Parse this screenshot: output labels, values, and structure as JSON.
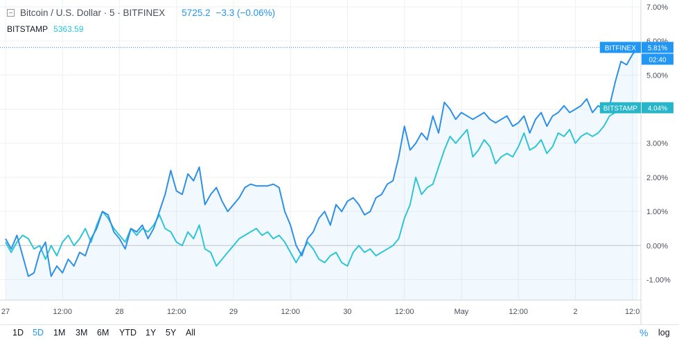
{
  "legend": {
    "title": "Bitcoin / U.S. Dollar · 5 · BITFINEX",
    "price": "5725.2",
    "change": "−3.3 (−0.06%)",
    "compare_name": "BITSTAMP",
    "compare_price": "5363.59"
  },
  "colors": {
    "main": "#2d8fe6",
    "compare": "#2ec4d6",
    "grid": "#eef0f3",
    "axis_text": "#4a4f5c"
  },
  "toolbar": {
    "ranges": [
      "1D",
      "5D",
      "1M",
      "3M",
      "6M",
      "YTD",
      "1Y",
      "5Y",
      "All"
    ],
    "active": "5D",
    "percent": "%",
    "log": "log"
  },
  "chart_data": {
    "type": "line",
    "percent_scale": true,
    "ylim": [
      -1.6,
      7.2
    ],
    "xlim": [
      0,
      111.5
    ],
    "y_ticks": [
      "7.00%",
      "6.00%",
      "5.00%",
      "4.00%",
      "3.00%",
      "2.00%",
      "1.00%",
      "0.00%",
      "-1.00%"
    ],
    "y_tick_values": [
      7,
      6,
      5,
      4,
      3,
      2,
      1,
      0,
      -1
    ],
    "x_ticks": [
      {
        "label": "27",
        "hour": 0
      },
      {
        "label": "12:00",
        "hour": 10
      },
      {
        "label": "28",
        "hour": 20
      },
      {
        "label": "12:00",
        "hour": 30
      },
      {
        "label": "29",
        "hour": 40
      },
      {
        "label": "12:00",
        "hour": 50
      },
      {
        "label": "30",
        "hour": 60
      },
      {
        "label": "12:00",
        "hour": 70
      },
      {
        "label": "May",
        "hour": 80
      },
      {
        "label": "12:00",
        "hour": 90
      },
      {
        "label": "2",
        "hour": 100
      },
      {
        "label": "12:0",
        "hour": 110
      }
    ],
    "x_unit": "hours since first tick",
    "grid": true,
    "series": [
      {
        "name": "BITFINEX",
        "last_label": "5.81%",
        "countdown": "02:40",
        "points": [
          [
            0,
            0.2
          ],
          [
            1,
            -0.1
          ],
          [
            2,
            0.3
          ],
          [
            3,
            -0.3
          ],
          [
            4,
            -0.9
          ],
          [
            5,
            -0.8
          ],
          [
            6,
            -0.2
          ],
          [
            7,
            0.1
          ],
          [
            8,
            -0.9
          ],
          [
            9,
            -0.6
          ],
          [
            10,
            -0.8
          ],
          [
            11,
            -0.4
          ],
          [
            12,
            -0.6
          ],
          [
            13,
            -0.2
          ],
          [
            14,
            -0.3
          ],
          [
            15,
            0.2
          ],
          [
            16,
            0.5
          ],
          [
            17,
            1.0
          ],
          [
            18,
            0.9
          ],
          [
            19,
            0.4
          ],
          [
            20,
            0.2
          ],
          [
            21,
            -0.1
          ],
          [
            22,
            0.5
          ],
          [
            23,
            0.4
          ],
          [
            24,
            0.6
          ],
          [
            25,
            0.2
          ],
          [
            26,
            0.5
          ],
          [
            27,
            1.0
          ],
          [
            28,
            1.5
          ],
          [
            29,
            2.2
          ],
          [
            30,
            1.6
          ],
          [
            31,
            1.5
          ],
          [
            32,
            2.1
          ],
          [
            33,
            1.9
          ],
          [
            34,
            2.3
          ],
          [
            35,
            1.2
          ],
          [
            36,
            1.5
          ],
          [
            37,
            1.7
          ],
          [
            38,
            1.3
          ],
          [
            39,
            1.0
          ],
          [
            40,
            1.2
          ],
          [
            41,
            1.4
          ],
          [
            42,
            1.7
          ],
          [
            43,
            1.8
          ],
          [
            44,
            1.75
          ],
          [
            45,
            1.75
          ],
          [
            46,
            1.75
          ],
          [
            47,
            1.8
          ],
          [
            48,
            1.7
          ],
          [
            49,
            1.0
          ],
          [
            50,
            0.6
          ],
          [
            51,
            0.0
          ],
          [
            52,
            -0.3
          ],
          [
            53,
            0.2
          ],
          [
            54,
            0.4
          ],
          [
            55,
            0.8
          ],
          [
            56,
            1.0
          ],
          [
            57,
            0.6
          ],
          [
            58,
            1.2
          ],
          [
            59,
            1.0
          ],
          [
            60,
            1.3
          ],
          [
            61,
            1.4
          ],
          [
            62,
            1.2
          ],
          [
            63,
            0.9
          ],
          [
            64,
            1.0
          ],
          [
            65,
            1.4
          ],
          [
            66,
            1.5
          ],
          [
            67,
            1.8
          ],
          [
            68,
            1.9
          ],
          [
            69,
            2.6
          ],
          [
            70,
            3.5
          ],
          [
            71,
            2.8
          ],
          [
            72,
            3.0
          ],
          [
            73,
            3.3
          ],
          [
            74,
            3.1
          ],
          [
            75,
            3.8
          ],
          [
            76,
            3.3
          ],
          [
            77,
            4.2
          ],
          [
            78,
            4.0
          ],
          [
            79,
            3.7
          ],
          [
            80,
            3.9
          ],
          [
            81,
            3.8
          ],
          [
            82,
            3.7
          ],
          [
            83,
            3.8
          ],
          [
            84,
            3.9
          ],
          [
            85,
            3.7
          ],
          [
            86,
            3.6
          ],
          [
            87,
            3.7
          ],
          [
            88,
            3.8
          ],
          [
            89,
            3.5
          ],
          [
            90,
            3.6
          ],
          [
            91,
            3.8
          ],
          [
            92,
            3.3
          ],
          [
            93,
            3.7
          ],
          [
            94,
            3.9
          ],
          [
            95,
            3.5
          ],
          [
            96,
            3.8
          ],
          [
            97,
            3.9
          ],
          [
            98,
            4.1
          ],
          [
            99,
            3.9
          ],
          [
            100,
            4.0
          ],
          [
            101,
            4.1
          ],
          [
            102,
            4.3
          ],
          [
            103,
            3.9
          ],
          [
            104,
            4.1
          ],
          [
            105,
            4.0
          ],
          [
            106,
            4.1
          ],
          [
            107,
            4.8
          ],
          [
            108,
            5.4
          ],
          [
            109,
            5.3
          ],
          [
            110,
            5.6
          ],
          [
            111,
            5.81
          ]
        ]
      },
      {
        "name": "BITSTAMP",
        "last_label": "4.04%",
        "points": [
          [
            0,
            0.1
          ],
          [
            1,
            -0.2
          ],
          [
            2,
            0.1
          ],
          [
            3,
            0.3
          ],
          [
            4,
            0.2
          ],
          [
            5,
            -0.1
          ],
          [
            6,
            0.0
          ],
          [
            7,
            -0.4
          ],
          [
            8,
            0.0
          ],
          [
            9,
            -0.3
          ],
          [
            10,
            0.1
          ],
          [
            11,
            0.3
          ],
          [
            12,
            0.0
          ],
          [
            13,
            0.2
          ],
          [
            14,
            0.5
          ],
          [
            15,
            0.1
          ],
          [
            16,
            0.6
          ],
          [
            17,
            1.0
          ],
          [
            18,
            0.8
          ],
          [
            19,
            0.5
          ],
          [
            20,
            0.3
          ],
          [
            21,
            0.1
          ],
          [
            22,
            0.5
          ],
          [
            23,
            0.3
          ],
          [
            24,
            0.5
          ],
          [
            25,
            0.4
          ],
          [
            26,
            0.6
          ],
          [
            27,
            0.9
          ],
          [
            28,
            0.5
          ],
          [
            29,
            0.4
          ],
          [
            30,
            0.1
          ],
          [
            31,
            0.0
          ],
          [
            32,
            0.4
          ],
          [
            33,
            0.2
          ],
          [
            34,
            0.6
          ],
          [
            35,
            -0.1
          ],
          [
            36,
            -0.2
          ],
          [
            37,
            -0.6
          ],
          [
            38,
            -0.4
          ],
          [
            39,
            -0.2
          ],
          [
            40,
            0.0
          ],
          [
            41,
            0.2
          ],
          [
            42,
            0.3
          ],
          [
            43,
            0.4
          ],
          [
            44,
            0.5
          ],
          [
            45,
            0.3
          ],
          [
            46,
            0.4
          ],
          [
            47,
            0.2
          ],
          [
            48,
            0.3
          ],
          [
            49,
            0.1
          ],
          [
            50,
            -0.2
          ],
          [
            51,
            -0.5
          ],
          [
            52,
            -0.2
          ],
          [
            53,
            0.1
          ],
          [
            54,
            -0.1
          ],
          [
            55,
            -0.4
          ],
          [
            56,
            -0.5
          ],
          [
            57,
            -0.3
          ],
          [
            58,
            -0.2
          ],
          [
            59,
            -0.5
          ],
          [
            60,
            -0.6
          ],
          [
            61,
            -0.2
          ],
          [
            62,
            0.0
          ],
          [
            63,
            -0.2
          ],
          [
            64,
            -0.1
          ],
          [
            65,
            -0.3
          ],
          [
            66,
            -0.2
          ],
          [
            67,
            -0.1
          ],
          [
            68,
            0.0
          ],
          [
            69,
            0.2
          ],
          [
            70,
            0.8
          ],
          [
            71,
            1.2
          ],
          [
            72,
            2.0
          ],
          [
            73,
            1.5
          ],
          [
            74,
            1.7
          ],
          [
            75,
            1.8
          ],
          [
            76,
            2.3
          ],
          [
            77,
            2.8
          ],
          [
            78,
            3.2
          ],
          [
            79,
            3.0
          ],
          [
            80,
            3.2
          ],
          [
            81,
            3.4
          ],
          [
            82,
            2.6
          ],
          [
            83,
            2.8
          ],
          [
            84,
            3.1
          ],
          [
            85,
            2.9
          ],
          [
            86,
            2.4
          ],
          [
            87,
            2.6
          ],
          [
            88,
            2.7
          ],
          [
            89,
            2.6
          ],
          [
            90,
            2.9
          ],
          [
            91,
            3.3
          ],
          [
            92,
            2.8
          ],
          [
            93,
            2.9
          ],
          [
            94,
            3.1
          ],
          [
            95,
            2.7
          ],
          [
            96,
            2.9
          ],
          [
            97,
            3.3
          ],
          [
            98,
            3.2
          ],
          [
            99,
            3.4
          ],
          [
            100,
            3.0
          ],
          [
            101,
            3.2
          ],
          [
            102,
            3.3
          ],
          [
            103,
            3.2
          ],
          [
            104,
            3.3
          ],
          [
            105,
            3.5
          ],
          [
            106,
            3.8
          ],
          [
            107,
            3.9
          ],
          [
            108,
            4.04
          ]
        ]
      }
    ]
  }
}
